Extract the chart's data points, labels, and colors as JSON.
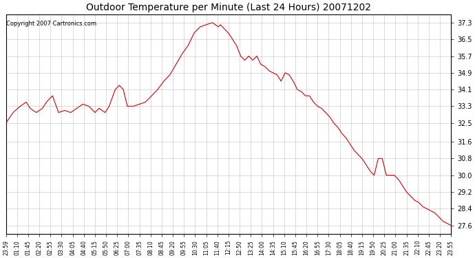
{
  "title": "Outdoor Temperature per Minute (Last 24 Hours) 20071202",
  "copyright_text": "Copyright 2007 Cartronics.com",
  "line_color": "#cc0000",
  "background_color": "#ffffff",
  "plot_background_color": "#ffffff",
  "grid_color": "#cccccc",
  "ylabel_right": true,
  "yticks": [
    27.6,
    28.4,
    29.2,
    30.0,
    30.8,
    31.6,
    32.5,
    33.3,
    34.1,
    34.9,
    35.7,
    36.5,
    37.3
  ],
  "ylim": [
    27.2,
    37.7
  ],
  "x_labels": [
    "23:59",
    "01:10",
    "01:45",
    "02:20",
    "02:55",
    "03:30",
    "04:05",
    "04:40",
    "05:15",
    "05:50",
    "06:25",
    "07:00",
    "07:35",
    "08:10",
    "08:45",
    "09:20",
    "09:55",
    "10:30",
    "11:05",
    "11:40",
    "12:15",
    "12:50",
    "13:25",
    "14:00",
    "14:35",
    "15:10",
    "15:45",
    "16:20",
    "16:55",
    "17:30",
    "18:05",
    "18:40",
    "19:15",
    "19:50",
    "20:25",
    "21:00",
    "21:35",
    "22:10",
    "22:45",
    "23:20",
    "23:55"
  ],
  "key_points": {
    "0": 32.5,
    "35": 33.0,
    "70": 33.3,
    "100": 33.5,
    "120": 33.2,
    "150": 33.0,
    "180": 33.2,
    "200": 33.5,
    "230": 33.8,
    "260": 33.0,
    "290": 33.1,
    "320": 33.0,
    "350": 33.2,
    "380": 33.4,
    "410": 33.3,
    "440": 33.0,
    "460": 33.2,
    "490": 33.0,
    "510": 33.3,
    "540": 34.1,
    "560": 34.3,
    "580": 34.1,
    "600": 33.3,
    "630": 33.3,
    "660": 33.4,
    "690": 33.5,
    "720": 33.8,
    "750": 34.1,
    "780": 34.5,
    "810": 34.8,
    "840": 35.3,
    "870": 35.8,
    "900": 36.2,
    "930": 36.8,
    "960": 37.1,
    "990": 37.2,
    "1020": 37.3,
    "1050": 37.1,
    "1060": 37.2,
    "1080": 37.0,
    "1100": 36.8,
    "1120": 36.5,
    "1140": 36.2,
    "1160": 35.7,
    "1180": 35.5,
    "1200": 35.7,
    "1220": 35.5,
    "1240": 35.7,
    "1260": 35.3,
    "1280": 35.2,
    "1300": 35.0,
    "1320": 34.9,
    "1340": 34.8,
    "1360": 34.5,
    "1380": 34.9,
    "1400": 34.8,
    "1420": 34.5,
    "1440": 34.1,
    "1460": 34.0,
    "1480": 33.8,
    "1500": 33.8,
    "1520": 33.5,
    "1540": 33.3,
    "1560": 33.2,
    "1580": 33.0,
    "1600": 32.8,
    "1620": 32.5,
    "1640": 32.3,
    "1660": 32.0,
    "1680": 31.8,
    "1700": 31.5,
    "1720": 31.2,
    "1740": 31.0,
    "1760": 30.8,
    "1780": 30.5,
    "1800": 30.2,
    "1820": 30.0,
    "1840": 30.8,
    "1860": 30.8,
    "1880": 30.0,
    "1900": 30.0,
    "1920": 30.0,
    "1940": 29.8,
    "1960": 29.5,
    "1980": 29.2,
    "2000": 29.0,
    "2020": 28.8,
    "2040": 28.7,
    "2060": 28.5,
    "2080": 28.4,
    "2100": 28.3,
    "2120": 28.2,
    "2140": 28.0,
    "2160": 27.8,
    "2180": 27.7,
    "2200": 27.6
  }
}
